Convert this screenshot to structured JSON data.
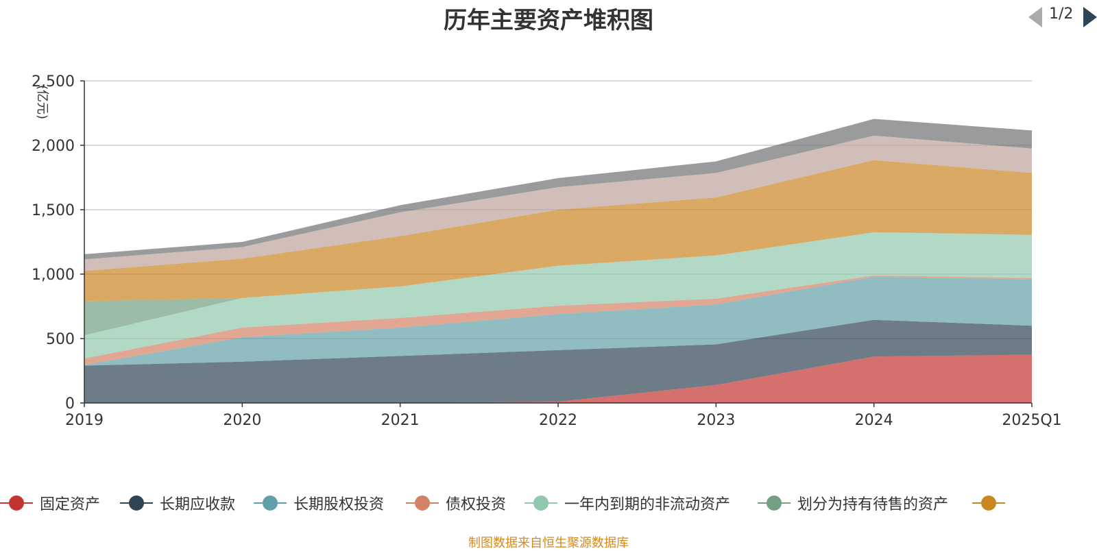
{
  "page": {
    "title": "历年主要资产堆积图",
    "source": "制图数据来自恒生聚源数据库",
    "legend_page": "1/2"
  },
  "chart_data": {
    "type": "area",
    "stacked": true,
    "title": "历年主要资产堆积图",
    "ylabel": "(亿元)",
    "xlabel": "",
    "categories": [
      "2019",
      "2020",
      "2021",
      "2022",
      "2023",
      "2024",
      "2025Q1"
    ],
    "ylim": [
      0,
      2500
    ],
    "yticks": [
      0,
      500,
      1000,
      1500,
      2000,
      2500
    ],
    "ytick_labels": [
      "0",
      "500",
      "1,000",
      "1,500",
      "2,000",
      "2,500"
    ],
    "grid": true,
    "legend_position": "bottom",
    "series": [
      {
        "name": "固定资产",
        "color": "#c23531",
        "legend": true,
        "values": [
          0,
          0,
          0,
          10,
          140,
          360,
          375
        ]
      },
      {
        "name": "长期应收款",
        "color": "#2f4554",
        "legend": true,
        "values": [
          290,
          320,
          365,
          400,
          315,
          285,
          225
        ]
      },
      {
        "name": "长期股权投资",
        "color": "#61a0a8",
        "legend": true,
        "values": [
          5,
          190,
          220,
          280,
          310,
          335,
          360
        ]
      },
      {
        "name": "债权投资",
        "color": "#d48265",
        "legend": true,
        "values": [
          50,
          75,
          75,
          65,
          45,
          10,
          10
        ]
      },
      {
        "name": "一年内到期的非流动资产",
        "color": "#91c7ae",
        "legend": true,
        "values": [
          180,
          230,
          245,
          310,
          335,
          335,
          335
        ]
      },
      {
        "name": "划分为持有待售的资产",
        "color": "#749f83",
        "legend": true,
        "values": [
          265,
          0,
          0,
          0,
          0,
          0,
          0
        ]
      },
      {
        "name": "",
        "color": "#ca8622",
        "legend": true,
        "values": [
          235,
          305,
          390,
          435,
          450,
          560,
          480
        ]
      },
      {
        "name": "",
        "color": "#bda29a",
        "legend": false,
        "values": [
          90,
          90,
          185,
          175,
          190,
          190,
          190
        ]
      },
      {
        "name": "",
        "color": "#6e7074",
        "legend": false,
        "values": [
          40,
          40,
          55,
          70,
          90,
          130,
          140
        ]
      }
    ]
  }
}
